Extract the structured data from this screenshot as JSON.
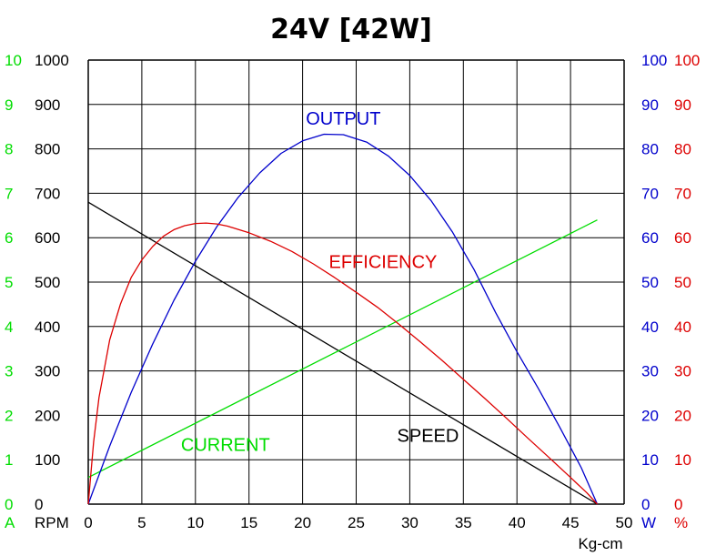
{
  "chart_data": {
    "type": "line",
    "title": "24V [42W]",
    "xlabel": "Kg-cm",
    "x_ticks": [
      "0",
      "5",
      "10",
      "15",
      "20",
      "25",
      "30",
      "35",
      "40",
      "45",
      "50"
    ],
    "xlim": [
      0,
      50
    ],
    "axes": {
      "current": {
        "unit": "A",
        "color": "#00dd00",
        "ticks": [
          "0",
          "1",
          "2",
          "3",
          "4",
          "5",
          "6",
          "7",
          "8",
          "9",
          "10"
        ],
        "range": [
          0,
          10
        ]
      },
      "speed": {
        "unit": "RPM",
        "color": "#000000",
        "ticks": [
          "0",
          "100",
          "200",
          "300",
          "400",
          "500",
          "600",
          "700",
          "800",
          "900",
          "1000"
        ],
        "range": [
          0,
          1000
        ]
      },
      "output": {
        "unit": "W",
        "color": "#0000cc",
        "ticks": [
          "0",
          "10",
          "20",
          "30",
          "40",
          "50",
          "60",
          "70",
          "80",
          "90",
          "100"
        ],
        "range": [
          0,
          100
        ]
      },
      "efficiency": {
        "unit": "%",
        "color": "#dd0000",
        "ticks": [
          "0",
          "10",
          "20",
          "30",
          "40",
          "50",
          "60",
          "70",
          "80",
          "90",
          "100"
        ],
        "range": [
          0,
          100
        ]
      }
    },
    "series": [
      {
        "name": "SPEED",
        "axis": "speed",
        "color": "#000000",
        "x": [
          0,
          47.5
        ],
        "y": [
          680,
          0
        ]
      },
      {
        "name": "CURRENT",
        "axis": "current",
        "color": "#00dd00",
        "x": [
          0,
          47.5
        ],
        "y": [
          0.6,
          6.4
        ]
      },
      {
        "name": "OUTPUT",
        "axis": "output",
        "color": "#0000cc",
        "x": [
          0,
          2,
          4,
          6,
          8,
          10,
          12,
          14,
          16,
          18,
          20,
          22,
          23.8,
          26,
          28,
          30,
          32,
          34,
          36,
          38,
          40,
          42,
          44,
          46,
          47.5
        ],
        "y": [
          0,
          13.1,
          25.1,
          36.0,
          45.9,
          54.7,
          62.5,
          69.1,
          74.6,
          79.0,
          81.8,
          83.3,
          83.2,
          81.5,
          78.4,
          74.0,
          68.3,
          61.2,
          52.8,
          43.2,
          34.3,
          26.0,
          17.3,
          8.2,
          0
        ]
      },
      {
        "name": "EFFICIENCY",
        "axis": "efficiency",
        "color": "#dd0000",
        "x": [
          0,
          0.5,
          1,
          2,
          3,
          4,
          5,
          6,
          7,
          8,
          9,
          10,
          11,
          12,
          13,
          15,
          17,
          19,
          21,
          23,
          25,
          27,
          29,
          31,
          33,
          35,
          37,
          39,
          41,
          43,
          45,
          46.5,
          47.5
        ],
        "y": [
          0,
          14,
          24,
          37,
          45,
          51,
          55,
          58,
          60.3,
          61.8,
          62.7,
          63.2,
          63.3,
          63.1,
          62.6,
          61.1,
          59.2,
          56.9,
          54.1,
          51.0,
          47.7,
          44.3,
          40.5,
          36.5,
          32.4,
          28.1,
          23.8,
          19.4,
          14.9,
          10.5,
          6.0,
          2.6,
          0
        ]
      }
    ],
    "series_labels": [
      {
        "text": "OUTPUT",
        "color": "#0000cc"
      },
      {
        "text": "EFFICIENCY",
        "color": "#dd0000"
      },
      {
        "text": "SPEED",
        "color": "#000000"
      },
      {
        "text": "CURRENT",
        "color": "#00dd00"
      }
    ],
    "grid": true
  }
}
